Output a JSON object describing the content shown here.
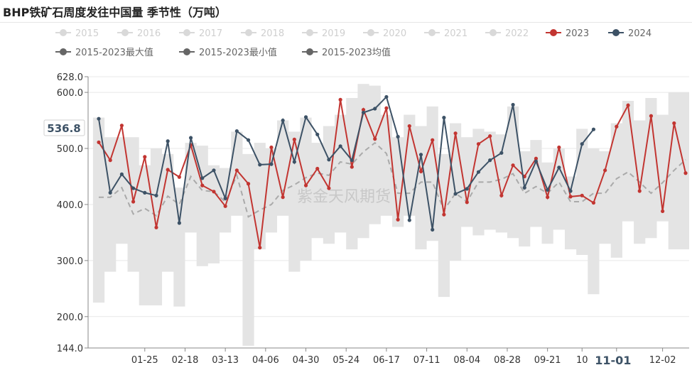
{
  "title": "BHP铁矿石周度发往中国量 季节性（万吨）",
  "watermark": "紫金天风期货",
  "colors": {
    "s2023": "#c23531",
    "s2024": "#3d5266",
    "band": "#e4e4e4",
    "avg": "#aaaaaa",
    "dim": "#d9d9d9",
    "legendDark": "#666666"
  },
  "chart_data": {
    "type": "line",
    "title": "BHP铁矿石周度发往中国量 季节性（万吨）",
    "xlabel": "",
    "ylabel": "",
    "ylim": [
      144,
      628
    ],
    "yticks": [
      "628.0",
      "600.0",
      "500.0",
      "400.0",
      "300.0",
      "200.0",
      "144.0"
    ],
    "ytick_values": [
      628,
      600,
      500,
      400,
      300,
      200,
      144
    ],
    "xticks": [
      "01-25",
      "02-18",
      "03-13",
      "04-06",
      "04-30",
      "05-24",
      "06-17",
      "07-11",
      "08-04",
      "08-28",
      "09-21",
      "10",
      "11-01",
      "12-02"
    ],
    "xtick_week": [
      4,
      7.5,
      11,
      14.5,
      18,
      21.5,
      25,
      28.5,
      32,
      35.5,
      39,
      42,
      45,
      49
    ],
    "x_label_highlight": "11-01",
    "axis_pointer": {
      "value": "536.8",
      "category": "11-01"
    },
    "legend": {
      "row1": [
        "2015",
        "2016",
        "2017",
        "2018",
        "2019",
        "2020",
        "2021",
        "2022",
        "2023",
        "2024"
      ],
      "row2": [
        "2015-2023最大值",
        "2015-2023最小值",
        "2015-2023均值"
      ],
      "dimmed": [
        "2015",
        "2016",
        "2017",
        "2018",
        "2019",
        "2020",
        "2021",
        "2022"
      ]
    },
    "series": [
      {
        "name": "2023",
        "values": [
          511,
          479,
          541,
          405,
          485,
          359,
          462,
          449,
          506,
          434,
          423,
          397,
          461,
          437,
          323,
          502,
          413,
          516,
          434,
          464,
          429,
          587,
          467,
          569,
          517,
          572,
          373,
          540,
          459,
          515,
          382,
          527,
          404,
          508,
          522,
          416,
          470,
          450,
          482,
          413,
          502,
          414,
          416,
          403,
          461,
          539,
          577,
          424,
          558,
          388,
          545,
          456
        ]
      },
      {
        "name": "2024",
        "values": [
          553,
          421,
          454,
          429,
          421,
          416,
          513,
          367,
          519,
          447,
          461,
          411,
          531,
          515,
          471,
          472,
          550,
          476,
          556,
          525,
          480,
          504,
          479,
          564,
          571,
          592,
          521,
          372,
          489,
          355,
          555,
          419,
          428,
          458,
          479,
          492,
          578,
          430,
          477,
          426,
          466,
          424,
          508,
          534
        ]
      },
      {
        "name": "2015-2023最大值",
        "values": [
          555,
          520,
          520,
          520,
          470,
          500,
          490,
          430,
          510,
          505,
          470,
          465,
          530,
          490,
          510,
          500,
          550,
          530,
          555,
          510,
          540,
          560,
          590,
          615,
          612,
          560,
          520,
          560,
          540,
          575,
          490,
          545,
          520,
          535,
          530,
          525,
          575,
          495,
          515,
          475,
          500,
          450,
          535,
          500,
          495,
          545,
          585,
          550,
          590,
          560,
          600,
          600
        ]
      },
      {
        "name": "2015-2023最小值",
        "values": [
          225,
          280,
          330,
          280,
          220,
          220,
          280,
          218,
          350,
          290,
          295,
          350,
          380,
          148,
          320,
          350,
          380,
          280,
          300,
          340,
          330,
          350,
          320,
          340,
          365,
          380,
          360,
          380,
          320,
          335,
          235,
          300,
          360,
          345,
          355,
          350,
          340,
          325,
          360,
          330,
          355,
          320,
          310,
          240,
          330,
          305,
          370,
          330,
          340,
          370,
          320,
          320
        ]
      },
      {
        "name": "2015-2023均值",
        "values": [
          413,
          413,
          430,
          383,
          393,
          380,
          415,
          400,
          450,
          425,
          423,
          405,
          452,
          378,
          390,
          400,
          425,
          435,
          448,
          456,
          452,
          476,
          472,
          494,
          510,
          491,
          420,
          420,
          440,
          440,
          390,
          420,
          405,
          440,
          440,
          445,
          455,
          420,
          432,
          420,
          440,
          405,
          405,
          420,
          420,
          446,
          458,
          440,
          420,
          439,
          461,
          480
        ]
      }
    ]
  }
}
